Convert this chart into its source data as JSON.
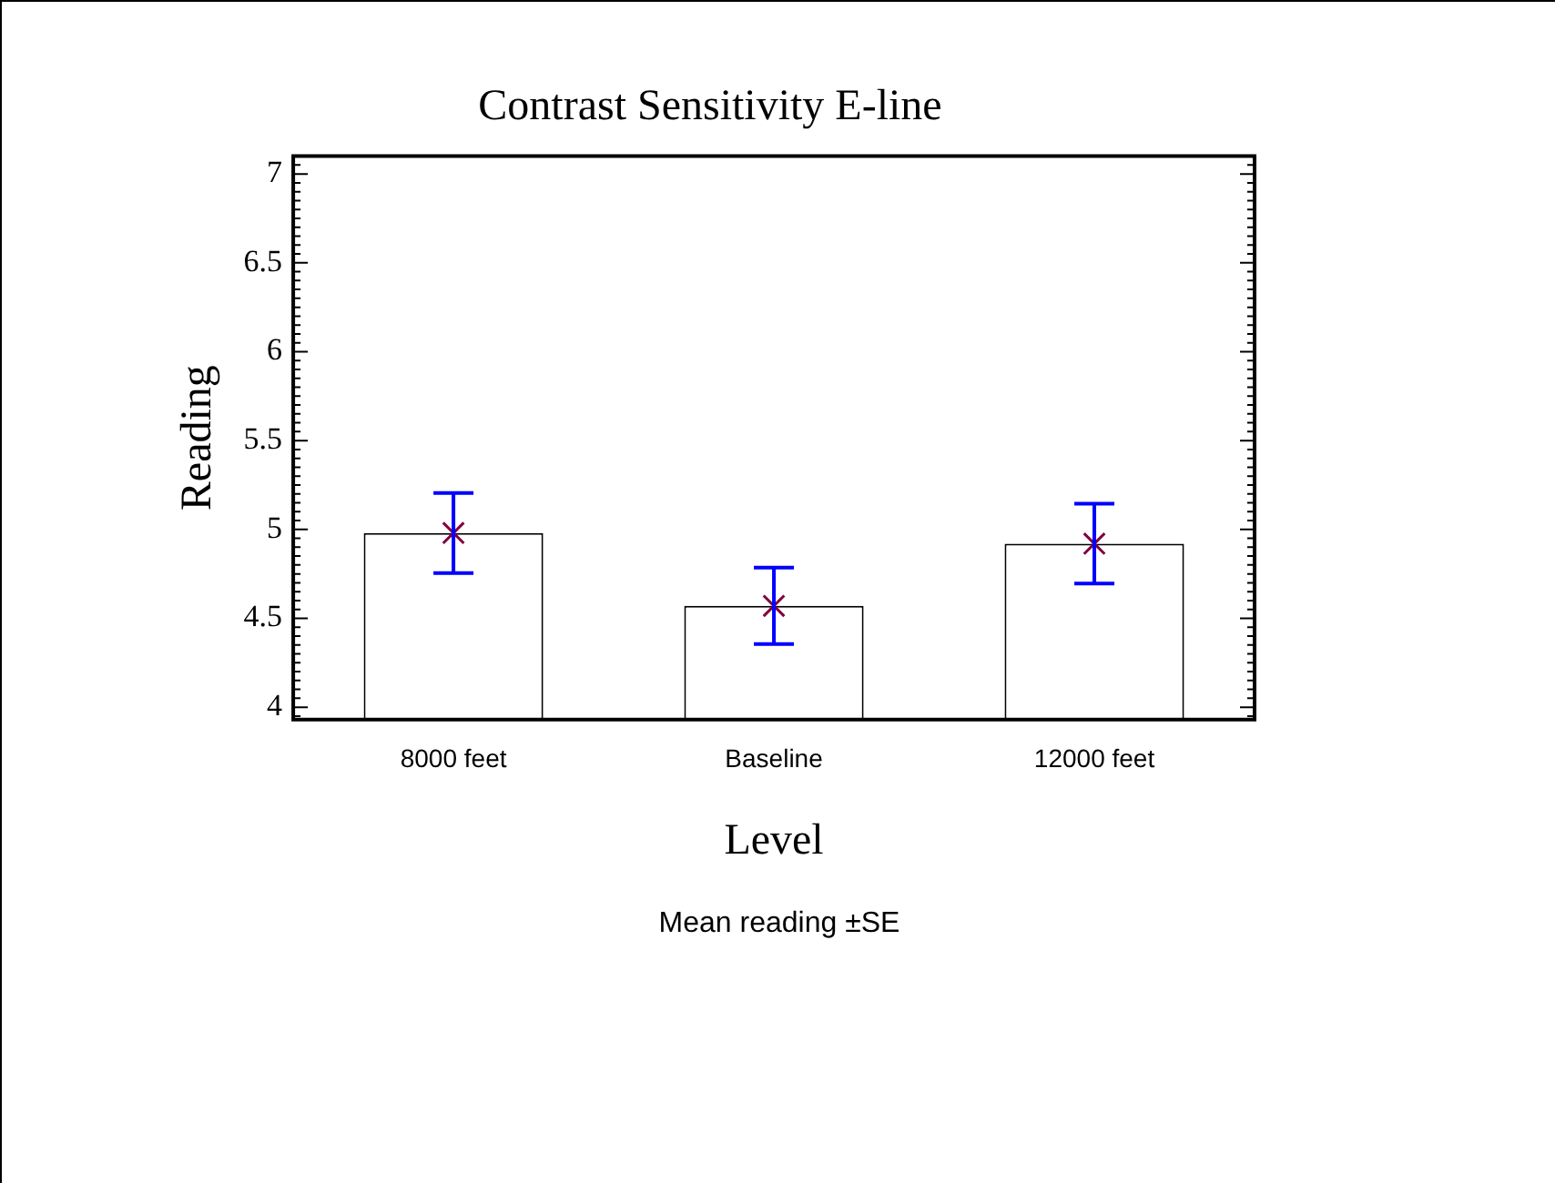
{
  "chart_data": {
    "type": "bar",
    "title": "Contrast Sensitivity E-line",
    "xlabel": "Level",
    "ylabel": "Reading",
    "categories": [
      "8000 feet",
      "Baseline",
      "12000 feet"
    ],
    "series": [
      {
        "color": "#ffffff",
        "values": [
          4.98,
          4.57,
          4.92
        ],
        "errors": [
          0.225,
          0.215,
          0.225
        ]
      },
      {
        "type": "scatter",
        "color": "#800040",
        "x": [
          "8000 feet",
          "Baseline",
          "12000 feet"
        ],
        "values": [
          4.98,
          4.57,
          4.92
        ],
        "marker": "cross"
      }
    ],
    "ylim": [
      3.93,
      7.1
    ],
    "yticks": [
      4,
      4.5,
      5,
      5.5,
      6,
      6.5,
      7
    ],
    "grid": false,
    "legend": false,
    "annotations": [
      "Mean reading ±SE"
    ]
  }
}
